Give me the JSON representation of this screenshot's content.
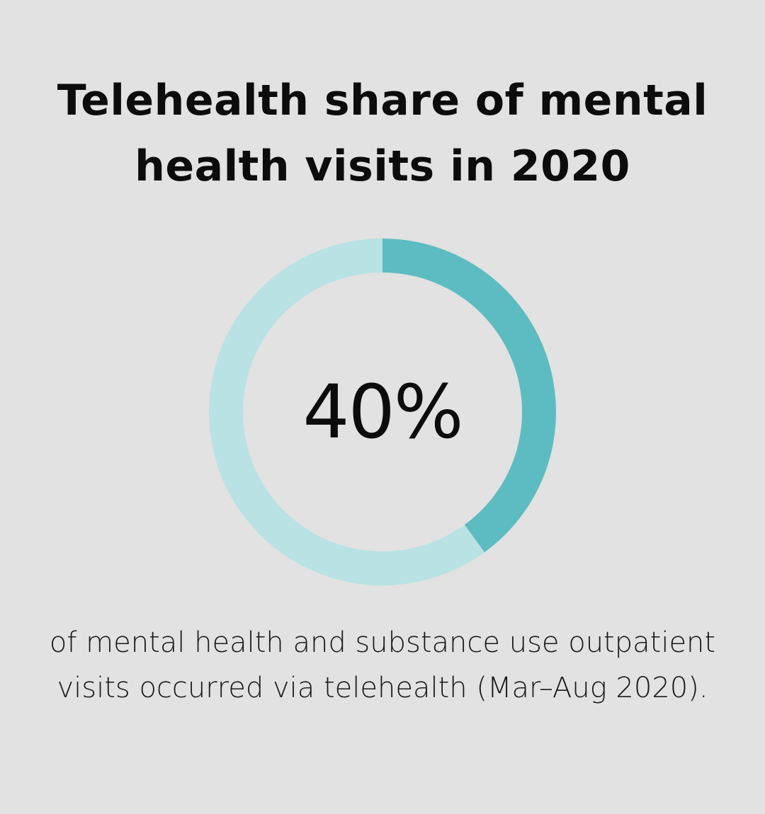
{
  "title": "Telehealth share of mental health visits in 2020",
  "caption": "of mental health and substance use outpatient visits occurred via telehealth (Mar–Aug 2020).",
  "colors": {
    "background": "#e1e2e1",
    "value_arc": "#5dbcc1",
    "track_arc": "#b9e2e4"
  },
  "chart_data": {
    "type": "pie",
    "variant": "donut",
    "value_label": "40%",
    "slices": [
      {
        "value": 40,
        "color": "#5dbcc1"
      },
      {
        "value": 60,
        "color": "#b9e2e4"
      }
    ]
  }
}
